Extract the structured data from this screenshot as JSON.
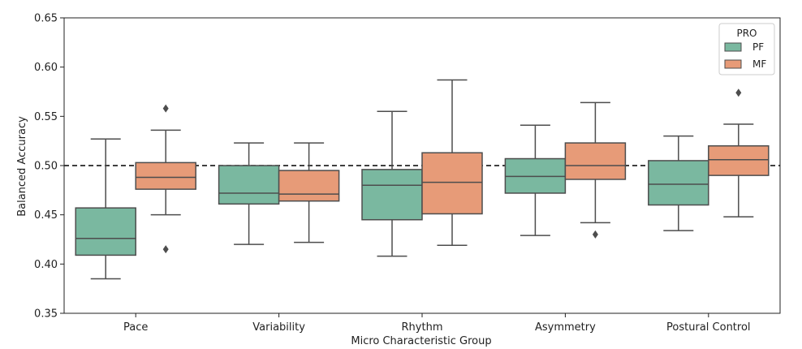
{
  "chart_data": {
    "type": "box",
    "xlabel": "Micro Characteristic Group",
    "ylabel": "Balanced Accuracy",
    "ylim": [
      0.35,
      0.65
    ],
    "yticks": [
      0.35,
      0.4,
      0.45,
      0.5,
      0.55,
      0.6,
      0.65
    ],
    "ytick_labels": [
      "0.35",
      "0.40",
      "0.45",
      "0.50",
      "0.55",
      "0.60",
      "0.65"
    ],
    "reference_line": {
      "y": 0.5,
      "style": "dashed",
      "color": "#000000"
    },
    "categories": [
      "Pace",
      "Variability",
      "Rhythm",
      "Asymmetry",
      "Postural Control"
    ],
    "legend": {
      "title": "PRO",
      "placement": "top-right"
    },
    "series": [
      {
        "name": "PF",
        "color": "#7ab8a0",
        "boxes": [
          {
            "whislo": 0.385,
            "q1": 0.409,
            "med": 0.426,
            "q3": 0.457,
            "whishi": 0.527,
            "fliers": []
          },
          {
            "whislo": 0.42,
            "q1": 0.461,
            "med": 0.472,
            "q3": 0.5,
            "whishi": 0.523,
            "fliers": []
          },
          {
            "whislo": 0.408,
            "q1": 0.445,
            "med": 0.48,
            "q3": 0.496,
            "whishi": 0.555,
            "fliers": []
          },
          {
            "whislo": 0.429,
            "q1": 0.472,
            "med": 0.489,
            "q3": 0.507,
            "whishi": 0.541,
            "fliers": []
          },
          {
            "whislo": 0.434,
            "q1": 0.46,
            "med": 0.481,
            "q3": 0.505,
            "whishi": 0.53,
            "fliers": []
          }
        ]
      },
      {
        "name": "MF",
        "color": "#e79b78",
        "boxes": [
          {
            "whislo": 0.45,
            "q1": 0.476,
            "med": 0.488,
            "q3": 0.503,
            "whishi": 0.536,
            "fliers": [
              0.558,
              0.415
            ]
          },
          {
            "whislo": 0.422,
            "q1": 0.464,
            "med": 0.471,
            "q3": 0.495,
            "whishi": 0.523,
            "fliers": []
          },
          {
            "whislo": 0.419,
            "q1": 0.451,
            "med": 0.483,
            "q3": 0.513,
            "whishi": 0.587,
            "fliers": []
          },
          {
            "whislo": 0.442,
            "q1": 0.486,
            "med": 0.5,
            "q3": 0.523,
            "whishi": 0.564,
            "fliers": [
              0.43
            ]
          },
          {
            "whislo": 0.448,
            "q1": 0.49,
            "med": 0.506,
            "q3": 0.52,
            "whishi": 0.542,
            "fliers": [
              0.574
            ]
          }
        ]
      }
    ]
  }
}
